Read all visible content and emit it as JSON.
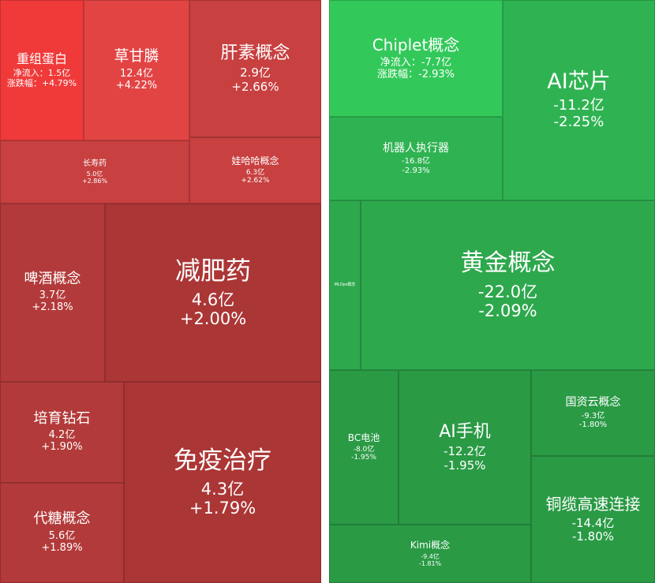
{
  "colors": {
    "gain_bright": "#f03a3a",
    "gain_dark": "#ab3636",
    "loss_bright": "#33c95a",
    "loss_dark": "#2a9a45"
  },
  "chart_data": [
    {
      "type": "treemap",
      "tiles": [
        {
          "name": "重组蛋白",
          "inflow_label": "净流入：",
          "inflow": "1.5亿",
          "change_label": "涨跌幅：",
          "change": "+4.79%"
        },
        {
          "name": "草甘膦",
          "inflow": "12.4亿",
          "change": "+4.22%"
        },
        {
          "name": "肝素概念",
          "inflow": "2.9亿",
          "change": "+2.66%"
        },
        {
          "name": "长寿药",
          "inflow": "5.0亿",
          "change": "+2.86%"
        },
        {
          "name": "娃哈哈概念",
          "inflow": "6.3亿",
          "change": "+2.62%"
        },
        {
          "name": "啤酒概念",
          "inflow": "3.7亿",
          "change": "+2.18%"
        },
        {
          "name": "减肥药",
          "inflow": "4.6亿",
          "change": "+2.00%"
        },
        {
          "name": "培育钻石",
          "inflow": "4.2亿",
          "change": "+1.90%"
        },
        {
          "name": "免疫治疗",
          "inflow": "4.3亿",
          "change": "+1.79%"
        },
        {
          "name": "代糖概念",
          "inflow": "5.6亿",
          "change": "+1.89%"
        }
      ]
    },
    {
      "type": "treemap",
      "tiles": [
        {
          "name": "Chiplet概念",
          "inflow_label": "净流入：",
          "inflow": "-7.7亿",
          "change_label": "涨跌幅：",
          "change": "-2.93%"
        },
        {
          "name": "AI芯片",
          "inflow": "-11.2亿",
          "change": "-2.25%"
        },
        {
          "name": "机器人执行器",
          "inflow": "-16.8亿",
          "change": "-2.93%"
        },
        {
          "name": "MLOps概念",
          "inflow": "",
          "change": ""
        },
        {
          "name": "黄金概念",
          "inflow": "-22.0亿",
          "change": "-2.09%"
        },
        {
          "name": "BC电池",
          "inflow": "-8.0亿",
          "change": "-1.95%"
        },
        {
          "name": "AI手机",
          "inflow": "-12.2亿",
          "change": "-1.95%"
        },
        {
          "name": "国资云概念",
          "inflow": "-9.3亿",
          "change": "-1.80%"
        },
        {
          "name": "铜缆高速连接",
          "inflow": "-14.4亿",
          "change": "-1.80%"
        },
        {
          "name": "Kimi概念",
          "inflow": "-9.4亿",
          "change": "-1.81%"
        }
      ]
    }
  ]
}
